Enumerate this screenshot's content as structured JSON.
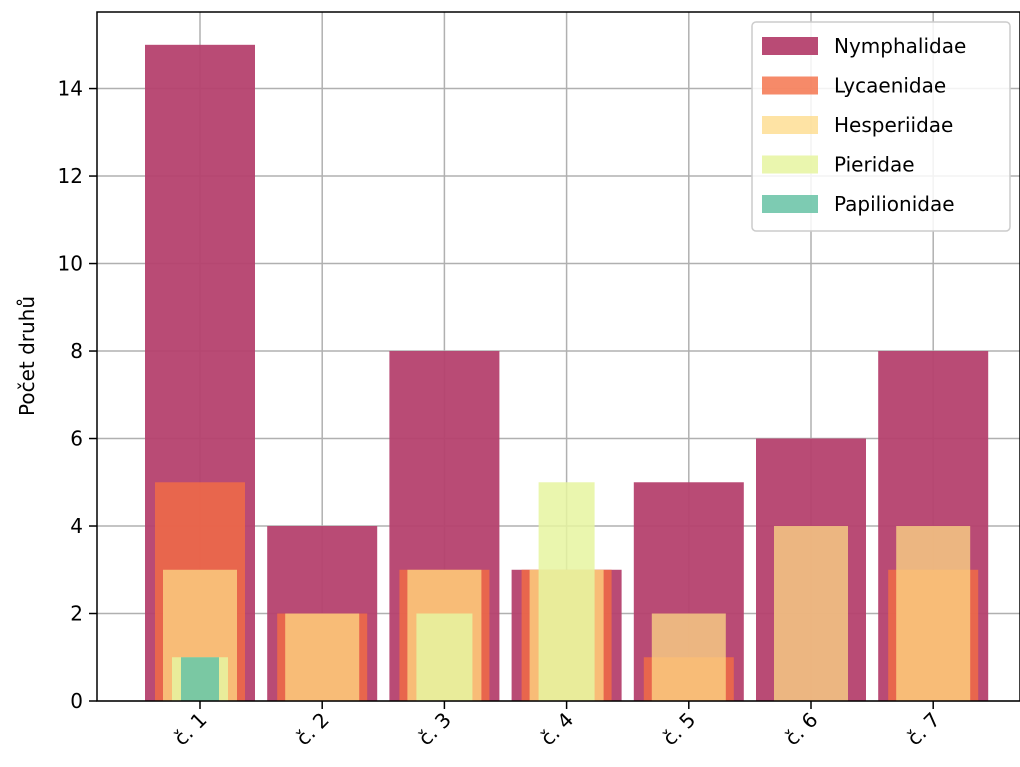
{
  "chart_data": {
    "type": "bar",
    "ylabel": "Počet druhů",
    "xlabel": "",
    "categories": [
      "č. 1",
      "č. 2",
      "č. 3",
      "č. 4",
      "č. 5",
      "č. 6",
      "č. 7"
    ],
    "ylim": [
      0,
      15.75
    ],
    "yticks": [
      0,
      2,
      4,
      6,
      8,
      10,
      12,
      14
    ],
    "grid": true,
    "legend_position": "top-right",
    "series": [
      {
        "name": "Nymphalidae",
        "color": "#b5416e",
        "values": [
          15,
          4,
          8,
          3,
          5,
          6,
          8
        ]
      },
      {
        "name": "Lycaenidae",
        "color": "#f46d43",
        "values": [
          5,
          2,
          3,
          3,
          1,
          0,
          3
        ]
      },
      {
        "name": "Hesperiidae",
        "color": "#fdd985",
        "values": [
          3,
          2,
          3,
          3,
          2,
          4,
          4
        ]
      },
      {
        "name": "Pieridae",
        "color": "#e6f5a0",
        "values": [
          1,
          0,
          2,
          5,
          0,
          0,
          0
        ]
      },
      {
        "name": "Papilionidae",
        "color": "#66c2a5",
        "values": [
          1,
          0,
          0,
          0,
          0,
          0,
          0
        ]
      }
    ]
  }
}
